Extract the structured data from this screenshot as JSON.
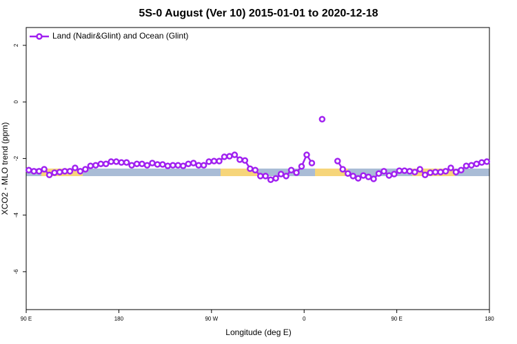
{
  "chart_data": {
    "type": "line",
    "title": "5S-0 August (Ver 10)   2015-01-01 to 2020-12-18",
    "x_label": "Longitude (deg E)",
    "y_label": "XCO2 - MLO trend (ppm)",
    "xlim": [
      90,
      540
    ],
    "ylim": [
      -7.34,
      2.63
    ],
    "xticks": [
      {
        "value": 90,
        "label": "90 E"
      },
      {
        "value": 180,
        "label": "180"
      },
      {
        "value": 270,
        "label": "90 W"
      },
      {
        "value": 360,
        "label": "0"
      },
      {
        "value": 450,
        "label": "90 E"
      },
      {
        "value": 540,
        "label": "180"
      }
    ],
    "yticks": [
      2,
      0,
      -2,
      -4,
      -6
    ],
    "legend": "top-left",
    "x": [
      92.5,
      97.5,
      102.5,
      107.5,
      112.5,
      117.5,
      122.5,
      127.5,
      132.5,
      137.5,
      142.5,
      147.5,
      152.5,
      157.5,
      162.5,
      167.5,
      172.5,
      177.5,
      182.5,
      187.5,
      192.5,
      197.5,
      202.5,
      207.5,
      212.5,
      217.5,
      222.5,
      227.5,
      232.5,
      237.5,
      242.5,
      247.5,
      252.5,
      257.5,
      262.5,
      267.5,
      272.5,
      277.5,
      282.5,
      287.5,
      292.5,
      297.5,
      302.5,
      307.5,
      312.5,
      317.5,
      322.5,
      327.5,
      332.5,
      337.5,
      342.5,
      347.5,
      352.5,
      357.5,
      362.5,
      367.5,
      372.5,
      377.5,
      382.5,
      387.5,
      392.5,
      397.5,
      402.5,
      407.5,
      412.5,
      417.5,
      422.5,
      427.5,
      432.5,
      437.5,
      442.5,
      447.5,
      452.5,
      457.5,
      462.5,
      467.5,
      472.5,
      477.5,
      482.5,
      487.5,
      492.5,
      497.5,
      502.5,
      507.5,
      512.5,
      517.5,
      522.5,
      527.5,
      532.5,
      537.5
    ],
    "series": [
      {
        "name": "Land (Nadir&Glint) and Ocean (Glint)",
        "color": "#a020f0",
        "values": [
          -2.41,
          -2.45,
          -2.45,
          -2.38,
          -2.58,
          -2.5,
          -2.48,
          -2.45,
          -2.45,
          -2.33,
          -2.45,
          -2.38,
          -2.26,
          -2.24,
          -2.19,
          -2.19,
          -2.11,
          -2.11,
          -2.14,
          -2.14,
          -2.24,
          -2.19,
          -2.19,
          -2.24,
          -2.16,
          -2.21,
          -2.21,
          -2.26,
          -2.24,
          -2.24,
          -2.26,
          -2.19,
          -2.16,
          -2.24,
          -2.24,
          -2.11,
          -2.09,
          -2.09,
          -1.94,
          -1.92,
          -1.87,
          -2.04,
          -2.07,
          -2.36,
          -2.41,
          -2.62,
          -2.62,
          -2.75,
          -2.7,
          -2.55,
          -2.62,
          -2.41,
          -2.5,
          -2.28,
          -1.87,
          -2.16,
          null,
          -0.61,
          null,
          null,
          -2.09,
          -2.38,
          -2.53,
          -2.62,
          -2.7,
          -2.6,
          -2.65,
          -2.72,
          -2.53,
          -2.45,
          -2.6,
          -2.55,
          -2.43,
          -2.43,
          -2.45,
          -2.48,
          -2.38,
          -2.58,
          -2.5,
          -2.48,
          -2.48,
          -2.45,
          -2.33,
          -2.48,
          -2.41,
          -2.26,
          -2.24,
          -2.19,
          -2.14,
          -2.11
        ]
      }
    ]
  }
}
